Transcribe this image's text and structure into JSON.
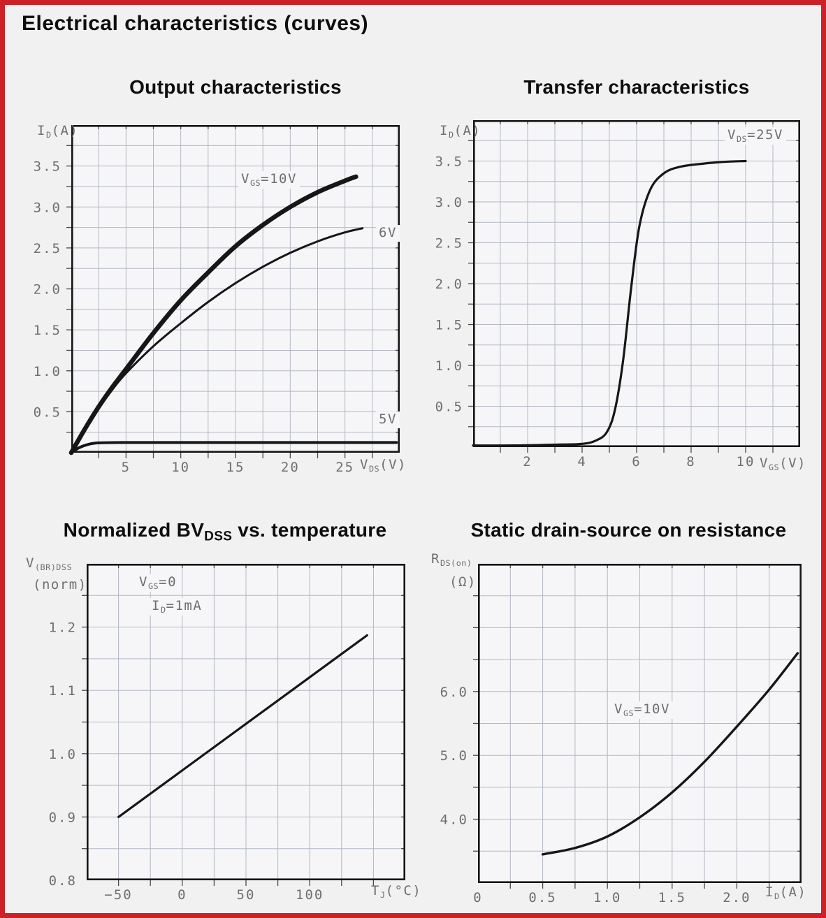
{
  "page": {
    "title": "Electrical characteristics (curves)"
  },
  "colors": {
    "outer_bg": "#f5e6e6",
    "border_red": "#cd2127",
    "page_bg": "#f1f1f2",
    "plot_bg": "#f6f6f8",
    "grid": "#b4b8c3",
    "curve": "#161616",
    "tick_label": "#6f6f6f",
    "title": "#0e0e0e"
  },
  "chart_data": [
    {
      "type": "line",
      "title": "Output characteristics",
      "xlabel": {
        "pre": "V",
        "sub": "DS",
        "post": "(V)"
      },
      "ylabel": {
        "pre": "I",
        "sub": "D",
        "post": "(A)"
      },
      "xlim": [
        0,
        30
      ],
      "ylim": [
        0,
        4
      ],
      "xgrid": 2.5,
      "ygrid": 0.25,
      "grid": "on",
      "legend_position": "inline-labels",
      "xticks": [
        {
          "v": 5,
          "label": "5"
        },
        {
          "v": 10,
          "label": "10"
        },
        {
          "v": 15,
          "label": "15"
        },
        {
          "v": 20,
          "label": "20"
        },
        {
          "v": 25,
          "label": "25"
        }
      ],
      "yticks": [
        {
          "v": 0.5,
          "label": "0.5"
        },
        {
          "v": 1,
          "label": "1.0"
        },
        {
          "v": 1.5,
          "label": "1.5"
        },
        {
          "v": 2,
          "label": "2.0"
        },
        {
          "v": 2.5,
          "label": "2.5"
        },
        {
          "v": 3,
          "label": "3.0"
        },
        {
          "v": 3.5,
          "label": "3.5"
        }
      ],
      "series": [
        {
          "name": "VGS=10V",
          "stroke_width": 6.5,
          "points": [
            [
              0,
              0
            ],
            [
              1.2,
              0.28
            ],
            [
              2.5,
              0.56
            ],
            [
              3.75,
              0.8
            ],
            [
              5,
              1.02
            ],
            [
              7.5,
              1.46
            ],
            [
              10,
              1.86
            ],
            [
              12.5,
              2.2
            ],
            [
              15,
              2.52
            ],
            [
              17.5,
              2.78
            ],
            [
              20,
              3.0
            ],
            [
              22.5,
              3.18
            ],
            [
              25,
              3.32
            ],
            [
              26,
              3.37
            ]
          ]
        },
        {
          "name": "VGS=6V",
          "stroke_width": 3,
          "points": [
            [
              0,
              0
            ],
            [
              1.2,
              0.27
            ],
            [
              2.5,
              0.54
            ],
            [
              3.75,
              0.77
            ],
            [
              5,
              0.97
            ],
            [
              7.5,
              1.3
            ],
            [
              10,
              1.58
            ],
            [
              12.5,
              1.84
            ],
            [
              15,
              2.07
            ],
            [
              17.5,
              2.27
            ],
            [
              20,
              2.44
            ],
            [
              22.5,
              2.58
            ],
            [
              25,
              2.69
            ],
            [
              26.6,
              2.74
            ]
          ]
        },
        {
          "name": "VGS=5V",
          "stroke_width": 4,
          "points": [
            [
              0,
              0
            ],
            [
              0.7,
              0.06
            ],
            [
              1.5,
              0.1
            ],
            [
              2.5,
              0.12
            ],
            [
              5,
              0.125
            ],
            [
              10,
              0.125
            ],
            [
              15,
              0.125
            ],
            [
              20,
              0.125
            ],
            [
              25,
              0.125
            ],
            [
              29.7,
              0.125
            ]
          ]
        }
      ],
      "annotations": {
        "vgs10": {
          "pre": "V",
          "sub": "GS",
          "post": "=10V"
        },
        "v6": "6V",
        "v5": "5V"
      }
    },
    {
      "type": "line",
      "title": "Transfer characteristics",
      "xlabel": {
        "pre": "V",
        "sub": "GS",
        "post": "(V)"
      },
      "ylabel": {
        "pre": "I",
        "sub": "D",
        "post": "(A)"
      },
      "xlim": [
        0,
        12
      ],
      "ylim": [
        0,
        4
      ],
      "xgrid": 1,
      "ygrid": 0.25,
      "grid": "on",
      "legend_position": "top-right-annotation",
      "xticks": [
        {
          "v": 2,
          "label": "2"
        },
        {
          "v": 4,
          "label": "4"
        },
        {
          "v": 6,
          "label": "6"
        },
        {
          "v": 8,
          "label": "8"
        },
        {
          "v": 10,
          "label": "10"
        }
      ],
      "yticks": [
        {
          "v": 0.5,
          "label": "0.5"
        },
        {
          "v": 1,
          "label": "1.0"
        },
        {
          "v": 1.5,
          "label": "1.5"
        },
        {
          "v": 2,
          "label": "2.0"
        },
        {
          "v": 2.5,
          "label": "2.5"
        },
        {
          "v": 3,
          "label": "3.0"
        },
        {
          "v": 3.5,
          "label": "3.5"
        }
      ],
      "series": [
        {
          "name": "VDS=25V",
          "stroke_width": 3.2,
          "points": [
            [
              0,
              0.02
            ],
            [
              1.5,
              0.02
            ],
            [
              3,
              0.03
            ],
            [
              4,
              0.04
            ],
            [
              4.5,
              0.08
            ],
            [
              4.9,
              0.18
            ],
            [
              5.2,
              0.45
            ],
            [
              5.5,
              1.05
            ],
            [
              5.8,
              1.95
            ],
            [
              6.1,
              2.7
            ],
            [
              6.5,
              3.15
            ],
            [
              7,
              3.35
            ],
            [
              7.6,
              3.43
            ],
            [
              8.5,
              3.47
            ],
            [
              9.2,
              3.49
            ],
            [
              10,
              3.5
            ]
          ]
        }
      ],
      "annotations": {
        "vds25": {
          "pre": "V",
          "sub": "DS",
          "post": "=25V"
        }
      }
    },
    {
      "type": "line",
      "title": "Normalized BVDSS vs. temperature",
      "title_parts": {
        "pre": "Normalized BV",
        "sub": "DSS",
        "post": " vs. temperature"
      },
      "xlabel": {
        "pre": "T",
        "sub": "J",
        "post": "(°C)"
      },
      "ylabel_line1": {
        "pre": "V",
        "sub": "(BR)DSS"
      },
      "ylabel_line2": "(norm)",
      "xlim": [
        -75,
        175
      ],
      "ylim": [
        0.8,
        1.3
      ],
      "xgrid": 25,
      "ygrid": 0.05,
      "grid": "on",
      "legend_position": "inline-annotation",
      "xticks": [
        {
          "v": -50,
          "label": "−50"
        },
        {
          "v": 0,
          "label": "0"
        },
        {
          "v": 50,
          "label": "50"
        },
        {
          "v": 100,
          "label": "100"
        }
      ],
      "yticks": [
        {
          "v": 0.8,
          "label": "0.8"
        },
        {
          "v": 0.9,
          "label": "0.9"
        },
        {
          "v": 1.0,
          "label": "1.0"
        },
        {
          "v": 1.1,
          "label": "1.1"
        },
        {
          "v": 1.2,
          "label": "1.2"
        }
      ],
      "series": [
        {
          "name": "V(BR)DSS normalized",
          "stroke_width": 3.2,
          "points": [
            [
              -50,
              0.9
            ],
            [
              145,
              1.187
            ]
          ]
        }
      ],
      "annotations": {
        "vgs0": {
          "pre": "V",
          "sub": "GS",
          "post": "=0"
        },
        "id1ma": {
          "pre": "I",
          "sub": "D",
          "post": "=1mA"
        }
      }
    },
    {
      "type": "line",
      "title": "Static drain-source on resistance",
      "xlabel": {
        "pre": "I",
        "sub": "D",
        "post": "(A)"
      },
      "ylabel_line1": {
        "pre": "R",
        "sub": "DS(on)"
      },
      "ylabel_line2": "(Ω)",
      "xlim": [
        0,
        2.5
      ],
      "ylim": [
        3,
        8
      ],
      "xgrid": 0.25,
      "ygrid": 0.5,
      "grid": "on",
      "legend_position": "inline-annotation",
      "xticks": [
        {
          "v": 0,
          "label": "0"
        },
        {
          "v": 0.5,
          "label": "0.5"
        },
        {
          "v": 1.0,
          "label": "1.0"
        },
        {
          "v": 1.5,
          "label": "1.5"
        },
        {
          "v": 2.0,
          "label": "2.0"
        }
      ],
      "yticks": [
        {
          "v": 4,
          "label": "4.0"
        },
        {
          "v": 5,
          "label": "5.0"
        },
        {
          "v": 6,
          "label": "6.0"
        }
      ],
      "series": [
        {
          "name": "RDS(on) at VGS=10V",
          "stroke_width": 3.4,
          "points": [
            [
              0.5,
              3.45
            ],
            [
              0.75,
              3.55
            ],
            [
              1.0,
              3.73
            ],
            [
              1.25,
              4.03
            ],
            [
              1.5,
              4.42
            ],
            [
              1.75,
              4.9
            ],
            [
              2.0,
              5.45
            ],
            [
              2.25,
              6.03
            ],
            [
              2.47,
              6.6
            ]
          ]
        }
      ],
      "annotations": {
        "vgs10": {
          "pre": "V",
          "sub": "GS",
          "post": "=10V"
        }
      }
    }
  ]
}
